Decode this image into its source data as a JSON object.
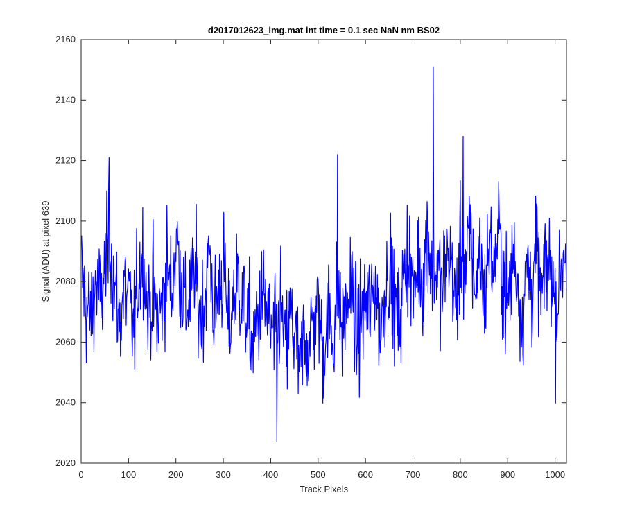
{
  "chart_data": {
    "type": "line",
    "title": "d2017012623_img.mat int time = 0.1 sec  NaN nm BS02",
    "xlabel": "Track Pixels",
    "ylabel": "Signal (ADU) at pixel 639",
    "xlim": [
      0,
      1024
    ],
    "ylim": [
      2020,
      2160
    ],
    "xticks": [
      0,
      100,
      200,
      300,
      400,
      500,
      600,
      700,
      800,
      900,
      1000
    ],
    "yticks": [
      2020,
      2040,
      2060,
      2080,
      2100,
      2120,
      2140,
      2160
    ],
    "xtick_labels": [
      "0",
      "100",
      "200",
      "300",
      "400",
      "500",
      "600",
      "700",
      "800",
      "900",
      "1000"
    ],
    "ytick_labels": [
      "2020",
      "2040",
      "2060",
      "2080",
      "2100",
      "2120",
      "2140",
      "2160"
    ],
    "grid": false,
    "line_color": "#0000ff",
    "series": [
      {
        "x_start": 1,
        "x_step": 10,
        "description": "noisy signal, one sampled value every 10 track pixels (1024 points in original)",
        "values": [
          2083,
          2071,
          2068,
          2080,
          2073,
          2085,
          2094,
          2078,
          2066,
          2079,
          2074,
          2063,
          2082,
          2089,
          2070,
          2076,
          2067,
          2072,
          2086,
          2075,
          2095,
          2081,
          2070,
          2077,
          2083,
          2069,
          2074,
          2091,
          2067,
          2078,
          2085,
          2063,
          2074,
          2081,
          2072,
          2069,
          2058,
          2066,
          2075,
          2071,
          2062,
          2060,
          2073,
          2056,
          2068,
          2063,
          2049,
          2062,
          2059,
          2068,
          2072,
          2055,
          2070,
          2061,
          2077,
          2064,
          2072,
          2079,
          2061,
          2068,
          2073,
          2070,
          2081,
          2062,
          2078,
          2086,
          2071,
          2067,
          2082,
          2091,
          2074,
          2088,
          2079,
          2098,
          2081,
          2085,
          2076,
          2090,
          2087,
          2069,
          2092,
          2083,
          2096,
          2078,
          2089,
          2075,
          2093,
          2084,
          2097,
          2080,
          2072,
          2089,
          2081,
          2068,
          2086,
          2078,
          2091,
          2074,
          2084,
          2087,
          2069,
          2083,
          2093,
          2077,
          2089,
          2072,
          2081,
          2076
        ]
      }
    ],
    "spikes": [
      {
        "x": 59,
        "y": 2121
      },
      {
        "x": 413,
        "y": 2027
      },
      {
        "x": 541,
        "y": 2122
      },
      {
        "x": 743,
        "y": 2151
      },
      {
        "x": 806,
        "y": 2128
      }
    ]
  }
}
